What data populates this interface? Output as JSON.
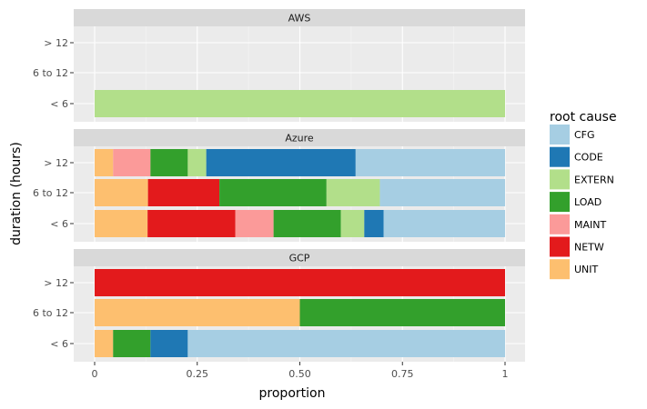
{
  "chart_data": {
    "type": "bar",
    "orientation": "horizontal",
    "stacked": true,
    "xlabel": "proportion",
    "ylabel": "duration (hours)",
    "xlim": [
      0,
      1
    ],
    "x_ticks": [
      "0",
      "0.25",
      "0.50",
      "0.75",
      "1"
    ],
    "x_tick_values": [
      0,
      0.25,
      0.5,
      0.75,
      1
    ],
    "categories": [
      "> 12",
      "6 to 12",
      "< 6"
    ],
    "grid": true,
    "legend": {
      "title": "root cause",
      "placement": "right",
      "entries": [
        "CFG",
        "CODE",
        "EXTERN",
        "LOAD",
        "MAINT",
        "NETW",
        "UNIT"
      ]
    },
    "colors": {
      "UNIT": "#fdbf6f",
      "NETW": "#e31a1c",
      "MAINT": "#fb9a99",
      "LOAD": "#33a02c",
      "EXTERN": "#b2df8a",
      "CODE": "#1f78b4",
      "CFG": "#a6cee3"
    },
    "stack_order": [
      "UNIT",
      "NETW",
      "MAINT",
      "LOAD",
      "EXTERN",
      "CODE",
      "CFG"
    ],
    "facets": [
      {
        "name": "AWS",
        "bars": [
          {
            "category": "> 12",
            "segments": {}
          },
          {
            "category": "6 to 12",
            "segments": {}
          },
          {
            "category": "< 6",
            "segments": {
              "EXTERN": 1.0
            }
          }
        ]
      },
      {
        "name": "Azure",
        "bars": [
          {
            "category": "> 12",
            "segments": {
              "UNIT": 0.045,
              "MAINT": 0.091,
              "LOAD": 0.091,
              "EXTERN": 0.045,
              "CODE": 0.364,
              "CFG": 0.364
            }
          },
          {
            "category": "6 to 12",
            "segments": {
              "UNIT": 0.13,
              "NETW": 0.174,
              "LOAD": 0.261,
              "EXTERN": 0.13,
              "CFG": 0.305
            }
          },
          {
            "category": "< 6",
            "segments": {
              "UNIT": 0.129,
              "NETW": 0.214,
              "MAINT": 0.093,
              "LOAD": 0.164,
              "EXTERN": 0.057,
              "CODE": 0.047,
              "CFG": 0.296
            }
          }
        ]
      },
      {
        "name": "GCP",
        "bars": [
          {
            "category": "> 12",
            "segments": {
              "NETW": 1.0
            }
          },
          {
            "category": "6 to 12",
            "segments": {
              "UNIT": 0.5,
              "LOAD": 0.5
            }
          },
          {
            "category": "< 6",
            "segments": {
              "UNIT": 0.045,
              "LOAD": 0.091,
              "CODE": 0.091,
              "CFG": 0.773
            }
          }
        ]
      }
    ]
  }
}
